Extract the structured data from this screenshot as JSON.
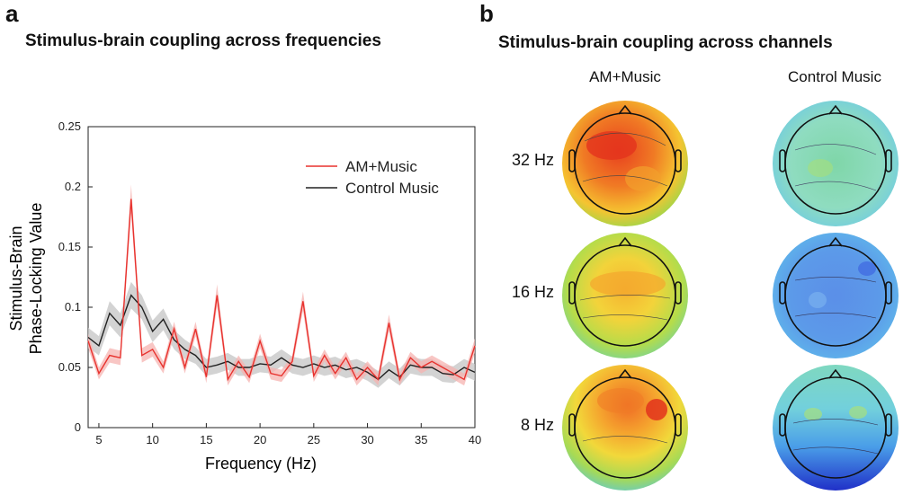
{
  "panel_a": {
    "letter": "a",
    "title": "Stimulus-brain coupling across frequencies"
  },
  "panel_b": {
    "letter": "b",
    "title": "Stimulus-brain coupling across channels",
    "columns": [
      "AM+Music",
      "Control Music"
    ],
    "rows": [
      "32 Hz",
      "16 Hz",
      "8 Hz"
    ],
    "maps": [
      {
        "row": "32 Hz",
        "column": "AM+Music",
        "level": "high"
      },
      {
        "row": "32 Hz",
        "column": "Control Music",
        "level": "low"
      },
      {
        "row": "16 Hz",
        "column": "AM+Music",
        "level": "medium"
      },
      {
        "row": "16 Hz",
        "column": "Control Music",
        "level": "very-low"
      },
      {
        "row": "8 Hz",
        "column": "AM+Music",
        "level": "high"
      },
      {
        "row": "8 Hz",
        "column": "Control Music",
        "level": "low"
      }
    ]
  },
  "chart_data": {
    "type": "line",
    "title": "Stimulus-brain coupling across frequencies",
    "xlabel": "Frequency (Hz)",
    "ylabel_lines": [
      "Stimulus-Brain",
      "Phase-Locking Value"
    ],
    "xlim": [
      4,
      40
    ],
    "ylim": [
      0,
      0.25
    ],
    "xticks": [
      5,
      10,
      15,
      20,
      25,
      30,
      35,
      40
    ],
    "yticks": [
      0,
      0.05,
      0.1,
      0.15,
      0.2,
      0.25
    ],
    "ytick_labels": [
      "0",
      "0.05",
      "0.1",
      "0.15",
      "0.2",
      "0.25"
    ],
    "grid": false,
    "legend_position": "top-right",
    "x": [
      4,
      5,
      6,
      7,
      8,
      9,
      10,
      11,
      12,
      13,
      14,
      15,
      16,
      17,
      18,
      19,
      20,
      21,
      22,
      23,
      24,
      25,
      26,
      27,
      28,
      29,
      30,
      31,
      32,
      33,
      34,
      35,
      36,
      37,
      38,
      39,
      40
    ],
    "series": [
      {
        "name": "AM+Music",
        "color": "#e8322e",
        "band_color": "#f5b3b0",
        "values": [
          0.072,
          0.045,
          0.06,
          0.058,
          0.19,
          0.06,
          0.065,
          0.05,
          0.082,
          0.05,
          0.082,
          0.042,
          0.11,
          0.04,
          0.055,
          0.042,
          0.072,
          0.045,
          0.043,
          0.055,
          0.105,
          0.043,
          0.06,
          0.045,
          0.058,
          0.04,
          0.05,
          0.04,
          0.087,
          0.04,
          0.058,
          0.05,
          0.055,
          0.05,
          0.045,
          0.04,
          0.068
        ],
        "band": [
          0.006,
          0.005,
          0.006,
          0.006,
          0.012,
          0.006,
          0.006,
          0.005,
          0.006,
          0.005,
          0.006,
          0.005,
          0.009,
          0.005,
          0.005,
          0.005,
          0.006,
          0.005,
          0.005,
          0.005,
          0.008,
          0.005,
          0.005,
          0.005,
          0.005,
          0.005,
          0.005,
          0.005,
          0.007,
          0.005,
          0.005,
          0.005,
          0.005,
          0.005,
          0.005,
          0.005,
          0.006
        ]
      },
      {
        "name": "Control Music",
        "color": "#222222",
        "band_color": "#c4c4c4",
        "values": [
          0.075,
          0.068,
          0.095,
          0.085,
          0.11,
          0.1,
          0.08,
          0.09,
          0.073,
          0.065,
          0.06,
          0.05,
          0.052,
          0.055,
          0.05,
          0.05,
          0.053,
          0.052,
          0.058,
          0.052,
          0.05,
          0.053,
          0.05,
          0.052,
          0.048,
          0.05,
          0.046,
          0.04,
          0.048,
          0.042,
          0.052,
          0.05,
          0.05,
          0.045,
          0.044,
          0.05,
          0.046
        ],
        "band": [
          0.008,
          0.008,
          0.01,
          0.01,
          0.011,
          0.01,
          0.009,
          0.009,
          0.008,
          0.008,
          0.007,
          0.007,
          0.007,
          0.007,
          0.007,
          0.007,
          0.007,
          0.007,
          0.007,
          0.007,
          0.007,
          0.007,
          0.007,
          0.007,
          0.007,
          0.007,
          0.007,
          0.007,
          0.007,
          0.007,
          0.007,
          0.007,
          0.007,
          0.007,
          0.007,
          0.007,
          0.007
        ]
      }
    ]
  }
}
